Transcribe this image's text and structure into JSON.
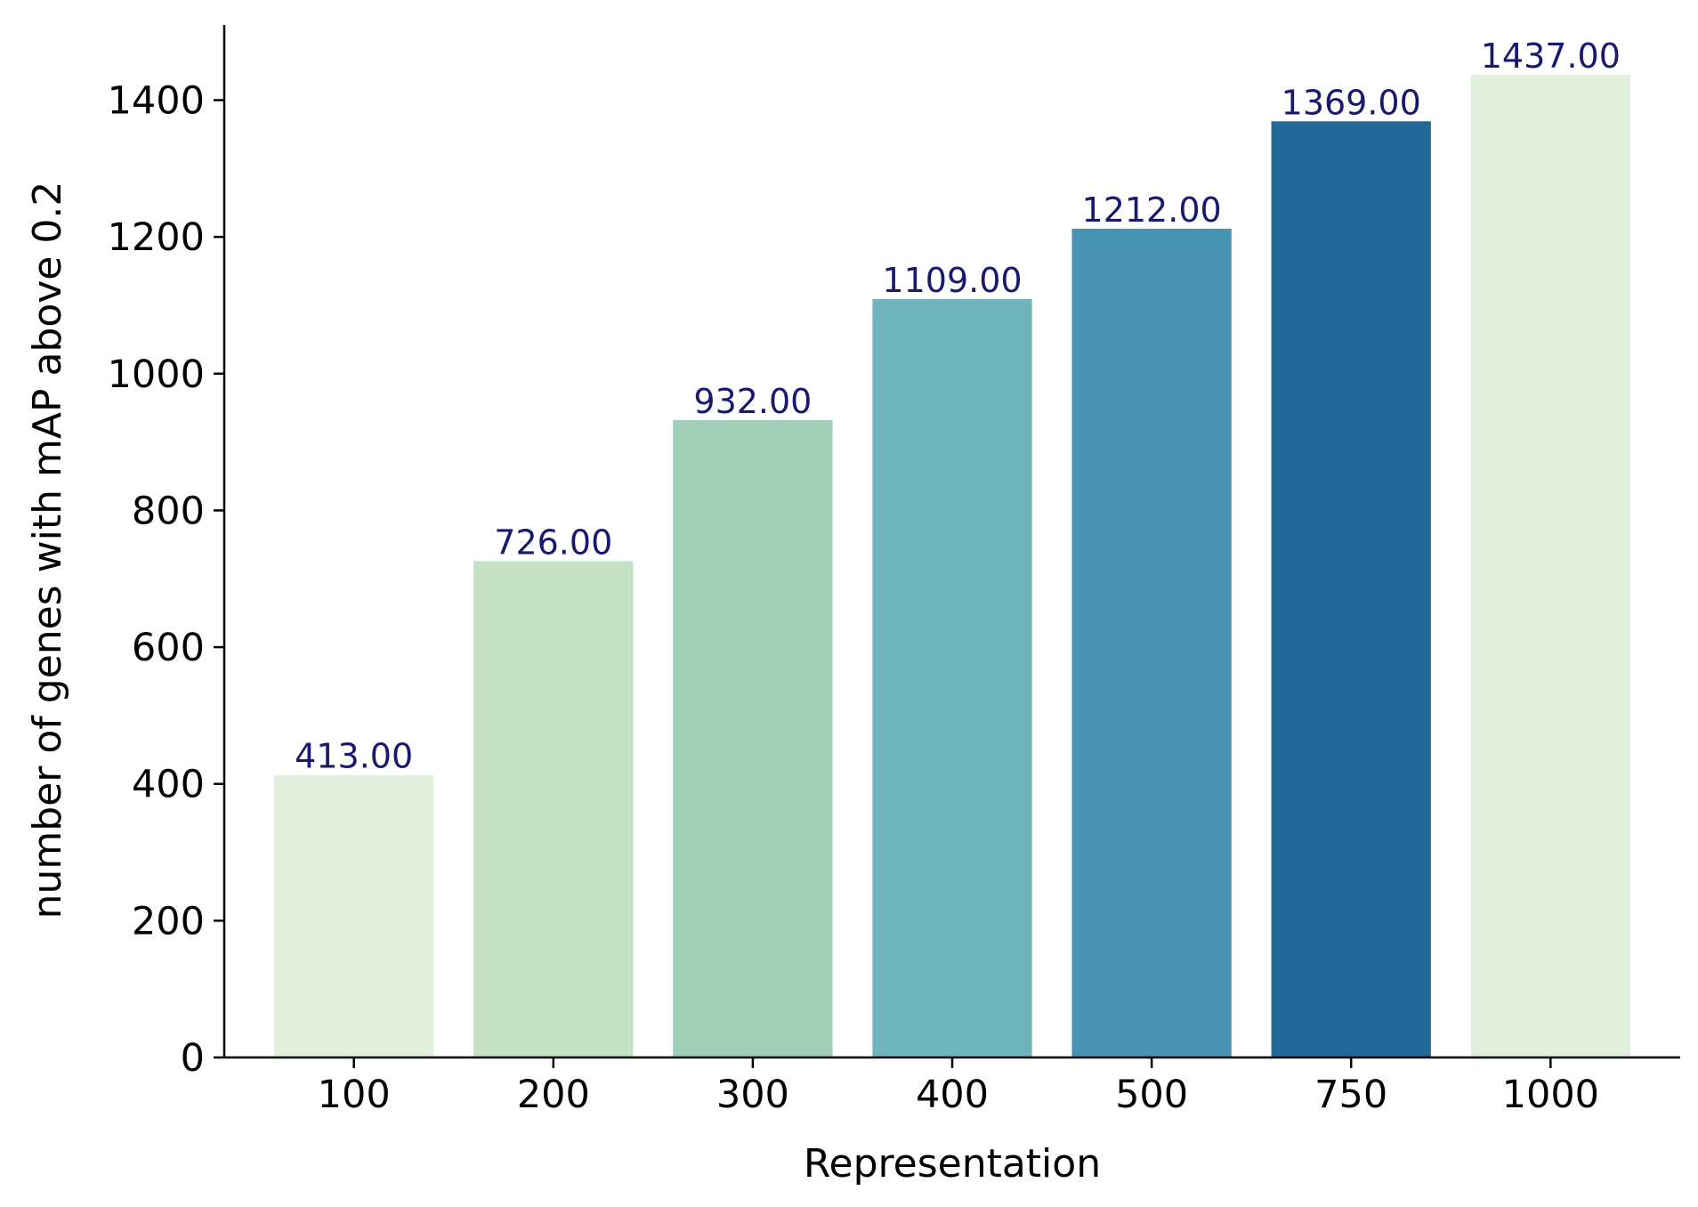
{
  "chart_data": {
    "type": "bar",
    "title": "",
    "xlabel": "Representation",
    "ylabel": "number of genes with mAP above 0.2",
    "categories": [
      "100",
      "200",
      "300",
      "400",
      "500",
      "750",
      "1000"
    ],
    "values": [
      413,
      726,
      932,
      1109,
      1212,
      1369,
      1437
    ],
    "data_labels": [
      "413.00",
      "726.00",
      "932.00",
      "1109.00",
      "1212.00",
      "1369.00",
      "1437.00"
    ],
    "bar_colors": [
      "#e0f0dc",
      "#c5e3c4",
      "#9fcdb8",
      "#6fb3bd",
      "#4893b3",
      "#226998",
      "#e0f0dc"
    ],
    "label_color": "#191970",
    "ylim": [
      0,
      1510
    ],
    "yticks": [
      0,
      200,
      400,
      600,
      800,
      1000,
      1200,
      1400
    ],
    "grid": false,
    "legend": "none"
  }
}
